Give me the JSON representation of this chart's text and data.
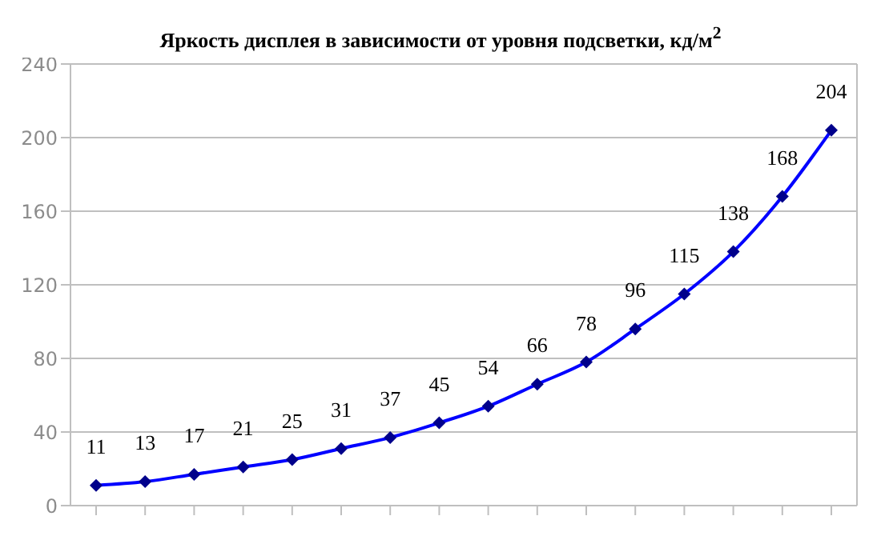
{
  "chart_data": {
    "type": "line",
    "title": "Яркость дисплея в зависимости от уровня подсветки, кд/м$^{2}$",
    "categories": [
      null,
      null,
      null,
      null,
      null,
      null,
      null,
      null,
      null,
      null,
      null,
      null,
      null,
      null,
      null,
      null
    ],
    "series": [
      {
        "color": "#0000ff",
        "values": [
          11,
          13,
          17,
          21,
          25,
          31,
          37,
          45,
          54,
          66,
          78,
          96,
          115,
          138,
          168,
          204
        ]
      }
    ],
    "ylim": [
      0,
      240
    ],
    "yticks": [
      0,
      40,
      80,
      120,
      160,
      200,
      240
    ],
    "grid": "y",
    "marker": "diamond",
    "line_style": "solid",
    "data_labels": true
  }
}
